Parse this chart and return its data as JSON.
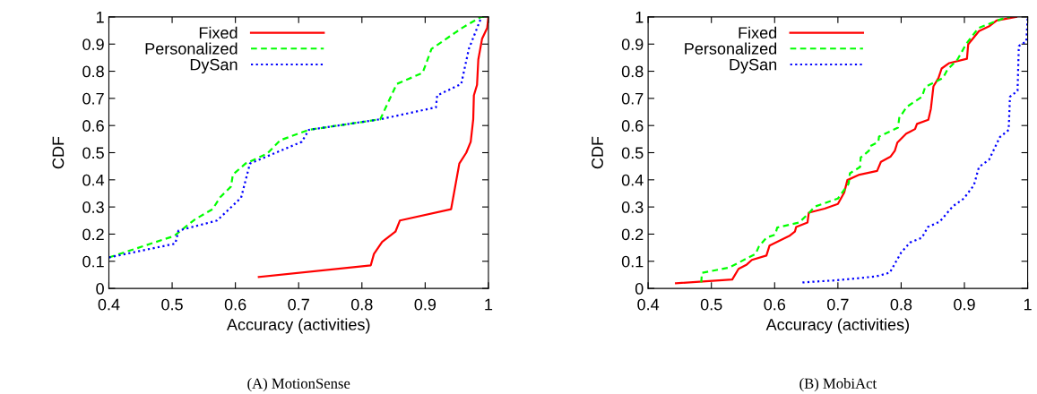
{
  "chart_data": [
    {
      "type": "line",
      "xlabel": "Accuracy (activities)",
      "ylabel": "CDF",
      "annotations": [
        "(A) MotionSense"
      ],
      "xlim": [
        0.4,
        1
      ],
      "ylim": [
        0,
        1
      ],
      "xticks": [
        0.4,
        0.5,
        0.6,
        0.7,
        0.8,
        0.9,
        1
      ],
      "yticks": [
        0,
        0.1,
        0.2,
        0.3,
        0.4,
        0.5,
        0.6,
        0.7,
        0.8,
        0.9,
        1
      ],
      "grid": false,
      "legend": "top",
      "series": [
        {
          "name": "Fixed",
          "color": "#ff0000",
          "line_style": "solid",
          "x": [
            0.637,
            0.814,
            0.819,
            0.832,
            0.853,
            0.86,
            0.941,
            0.954,
            0.965,
            0.972,
            0.976,
            0.977,
            0.982,
            0.984,
            0.99,
            0.998,
            1.0
          ],
          "values": [
            0.042,
            0.085,
            0.127,
            0.171,
            0.209,
            0.25,
            0.292,
            0.46,
            0.5,
            0.54,
            0.623,
            0.711,
            0.75,
            0.843,
            0.92,
            0.959,
            1.0
          ]
        },
        {
          "name": "Personalized",
          "color": "#00ff00",
          "line_style": "dashed",
          "x": [
            0.4,
            0.503,
            0.536,
            0.564,
            0.576,
            0.593,
            0.596,
            0.616,
            0.65,
            0.671,
            0.716,
            0.829,
            0.855,
            0.896,
            0.91,
            0.958,
            0.988,
            1.0
          ],
          "values": [
            0.114,
            0.193,
            0.254,
            0.292,
            0.336,
            0.375,
            0.419,
            0.46,
            0.496,
            0.546,
            0.584,
            0.623,
            0.753,
            0.794,
            0.882,
            0.959,
            1.0,
            1.0
          ]
        },
        {
          "name": "DySan",
          "color": "#0000ff",
          "line_style": "dotted",
          "x": [
            0.4,
            0.505,
            0.51,
            0.571,
            0.609,
            0.623,
            0.705,
            0.716,
            0.829,
            0.917,
            0.919,
            0.957,
            0.969,
            0.989
          ],
          "values": [
            0.114,
            0.165,
            0.213,
            0.25,
            0.334,
            0.46,
            0.54,
            0.584,
            0.623,
            0.667,
            0.711,
            0.753,
            0.882,
            1.0
          ]
        }
      ]
    },
    {
      "type": "line",
      "xlabel": "Accuracy (activities)",
      "ylabel": "CDF",
      "annotations": [
        "(B) MobiAct"
      ],
      "xlim": [
        0.4,
        1
      ],
      "ylim": [
        0,
        1
      ],
      "xticks": [
        0.4,
        0.5,
        0.6,
        0.7,
        0.8,
        0.9,
        1
      ],
      "yticks": [
        0,
        0.1,
        0.2,
        0.3,
        0.4,
        0.5,
        0.6,
        0.7,
        0.8,
        0.9,
        1
      ],
      "grid": false,
      "legend": "top",
      "series": [
        {
          "name": "Fixed",
          "color": "#ff0000",
          "line_style": "solid",
          "x": [
            0.444,
            0.533,
            0.543,
            0.556,
            0.564,
            0.587,
            0.592,
            0.623,
            0.632,
            0.634,
            0.652,
            0.654,
            0.679,
            0.7,
            0.71,
            0.715,
            0.734,
            0.762,
            0.768,
            0.783,
            0.79,
            0.794,
            0.808,
            0.822,
            0.825,
            0.843,
            0.847,
            0.851,
            0.859,
            0.864,
            0.876,
            0.904,
            0.906,
            0.923,
            0.94,
            0.951,
            0.982
          ],
          "values": [
            0.019,
            0.033,
            0.072,
            0.088,
            0.105,
            0.121,
            0.158,
            0.193,
            0.209,
            0.226,
            0.243,
            0.279,
            0.294,
            0.311,
            0.353,
            0.399,
            0.419,
            0.433,
            0.466,
            0.485,
            0.507,
            0.537,
            0.57,
            0.587,
            0.606,
            0.621,
            0.662,
            0.744,
            0.775,
            0.81,
            0.83,
            0.846,
            0.899,
            0.948,
            0.967,
            0.987,
            1.0
          ]
        },
        {
          "name": "Personalized",
          "color": "#00ff00",
          "line_style": "dashed",
          "x": [
            0.484,
            0.485,
            0.528,
            0.57,
            0.575,
            0.587,
            0.601,
            0.604,
            0.639,
            0.655,
            0.663,
            0.7,
            0.717,
            0.719,
            0.735,
            0.736,
            0.749,
            0.751,
            0.764,
            0.765,
            0.795,
            0.797,
            0.809,
            0.833,
            0.838,
            0.866,
            0.873,
            0.889,
            0.903,
            0.922,
            0.958,
            0.972
          ],
          "values": [
            0.022,
            0.057,
            0.077,
            0.127,
            0.154,
            0.187,
            0.198,
            0.224,
            0.243,
            0.279,
            0.301,
            0.331,
            0.386,
            0.424,
            0.447,
            0.482,
            0.507,
            0.524,
            0.54,
            0.559,
            0.592,
            0.628,
            0.669,
            0.706,
            0.742,
            0.775,
            0.805,
            0.843,
            0.901,
            0.959,
            0.992,
            1.0
          ]
        },
        {
          "name": "DySan",
          "color": "#0000ff",
          "line_style": "dotted",
          "x": [
            0.644,
            0.698,
            0.76,
            0.782,
            0.8,
            0.814,
            0.833,
            0.842,
            0.861,
            0.882,
            0.899,
            0.915,
            0.923,
            0.939,
            0.956,
            0.97,
            0.972,
            0.984,
            0.986,
            0.998,
            1.0
          ],
          "values": [
            0.022,
            0.03,
            0.044,
            0.058,
            0.132,
            0.169,
            0.187,
            0.226,
            0.246,
            0.303,
            0.331,
            0.38,
            0.447,
            0.474,
            0.557,
            0.584,
            0.706,
            0.728,
            0.893,
            0.91,
            1.0
          ]
        }
      ]
    }
  ]
}
